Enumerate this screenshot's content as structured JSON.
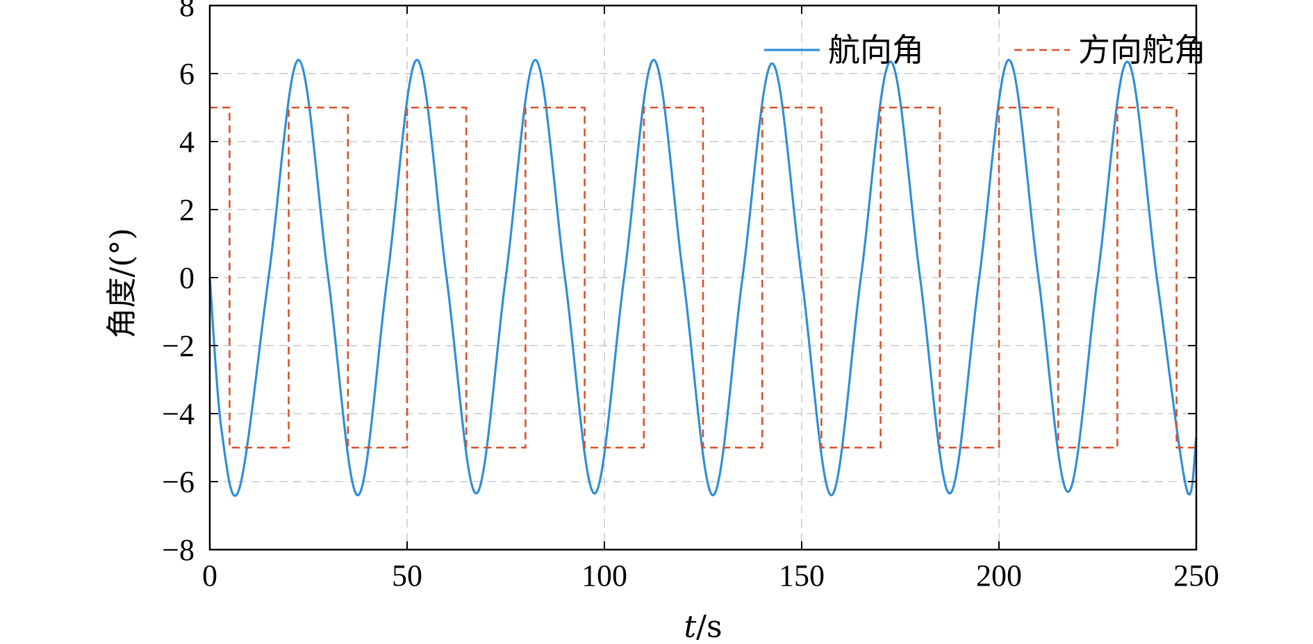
{
  "chart_data": {
    "type": "line",
    "xlabel_italic": "t",
    "xlabel_rest": "/s",
    "ylabel": "角度/(°)",
    "xlim": [
      0,
      250
    ],
    "ylim": [
      -8,
      8
    ],
    "x_ticks": [
      0,
      50,
      100,
      150,
      200,
      250
    ],
    "y_ticks": [
      -8,
      -6,
      -4,
      -2,
      0,
      2,
      4,
      6,
      8
    ],
    "grid": true,
    "legend_position": "top-right",
    "series": [
      {
        "name": "航向角",
        "style": "solid",
        "color": "#2f8ed8",
        "x": [
          0,
          3,
          7.5,
          15,
          22.5,
          30,
          37.5,
          45,
          52.5,
          60,
          67.5,
          75,
          82.5,
          90,
          97.5,
          105,
          112.5,
          120,
          127.5,
          135,
          142.5,
          150,
          157.5,
          165,
          172.5,
          180,
          187.5,
          195,
          202.5,
          210,
          217.5,
          225,
          232.5,
          240,
          247.5,
          250
        ],
        "y": [
          0,
          -4.5,
          -6.2,
          0.1,
          6.4,
          0.0,
          -6.4,
          0.0,
          6.4,
          0.0,
          -6.35,
          0.0,
          6.4,
          0.0,
          -6.35,
          0.0,
          6.4,
          0.0,
          -6.4,
          0.0,
          6.3,
          0.0,
          -6.4,
          0.0,
          6.35,
          0.0,
          -6.35,
          0.0,
          6.4,
          0.0,
          -6.3,
          0.0,
          6.35,
          0.0,
          -6.2,
          -4.7
        ]
      },
      {
        "name": "方向舵角",
        "style": "dashed",
        "color": "#d9502a",
        "x": [
          0,
          5,
          5,
          20,
          20,
          35,
          35,
          50,
          50,
          65,
          65,
          80,
          80,
          95,
          95,
          110,
          110,
          125,
          125,
          140,
          140,
          155,
          155,
          170,
          170,
          185,
          185,
          200,
          200,
          215,
          215,
          230,
          230,
          245,
          245,
          250
        ],
        "y": [
          5,
          5,
          -5,
          -5,
          5,
          5,
          -5,
          -5,
          5,
          5,
          -5,
          -5,
          5,
          5,
          -5,
          -5,
          5,
          5,
          -5,
          -5,
          5,
          5,
          -5,
          -5,
          5,
          5,
          -5,
          -5,
          5,
          5,
          -5,
          -5,
          5,
          5,
          -5,
          -5
        ]
      }
    ]
  }
}
